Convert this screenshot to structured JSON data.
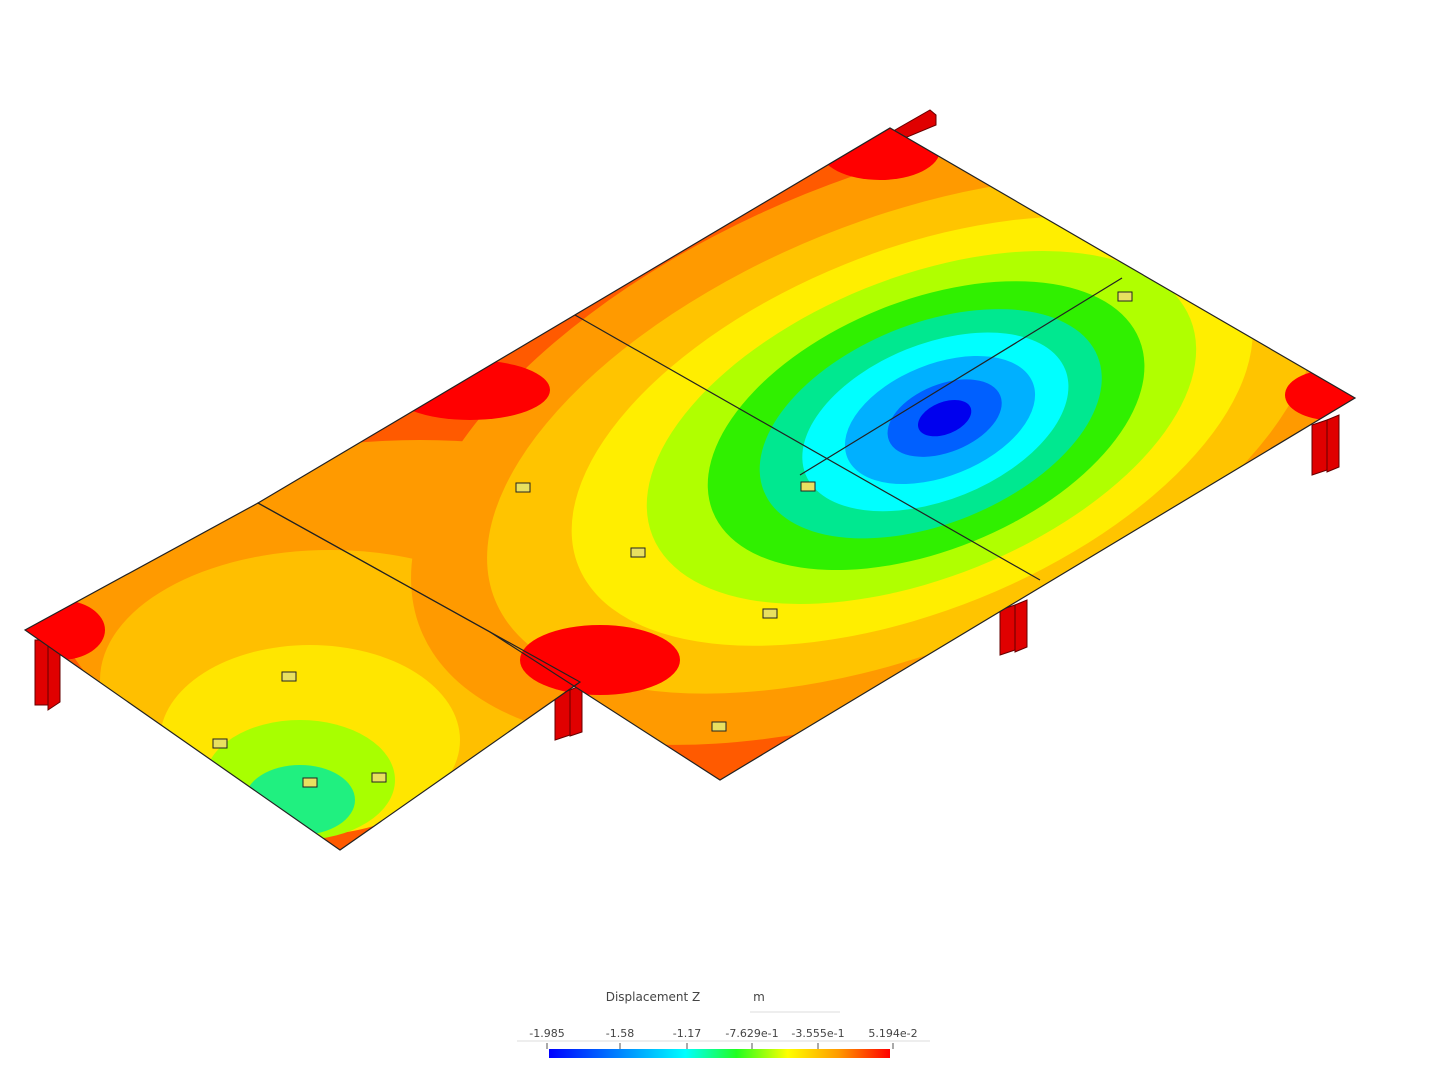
{
  "legend": {
    "title": "Displacement Z",
    "unit": "m",
    "ticks": [
      "-1.985",
      "-1.58",
      "-1.17",
      "-7.629e-1",
      "-3.555e-1",
      "5.194e-2"
    ]
  }
}
